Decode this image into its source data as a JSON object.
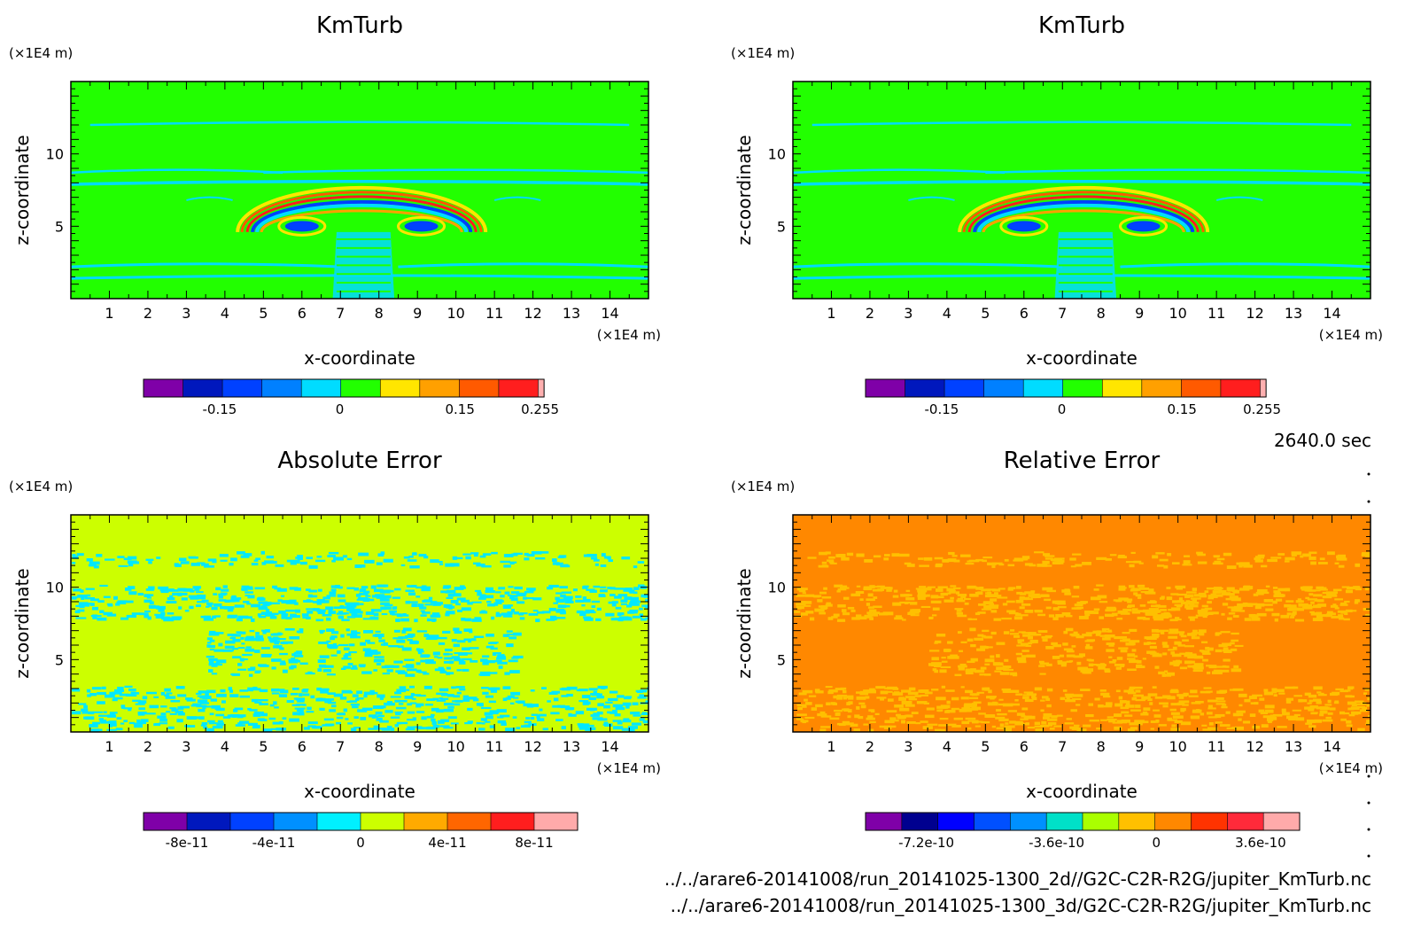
{
  "chart_data": [
    {
      "type": "heatmap",
      "panel": "top-left",
      "title": "KmTurb",
      "xlabel": "x-coordinate",
      "ylabel": "z-coordinate",
      "x_unit": "(×1E4 m)",
      "y_unit": "(×1E4 m)",
      "xlim": [
        0,
        15
      ],
      "ylim": [
        0,
        15
      ],
      "xticks": [
        "1",
        "2",
        "3",
        "4",
        "5",
        "6",
        "7",
        "8",
        "9",
        "10",
        "11",
        "12",
        "13",
        "14"
      ],
      "yticks": [
        "5",
        "10"
      ],
      "background_color": "#22ff00",
      "colorbar": {
        "levels": [
          "#7f00a8",
          "#0018bd",
          "#0041ff",
          "#0080ff",
          "#00dcff",
          "#22ff00",
          "#ffe600",
          "#ffa000",
          "#ff5a00",
          "#ff1e1e",
          "#ffb0b0"
        ],
        "tick_labels": [
          "-0.15",
          "0",
          "0.15",
          "0.255"
        ],
        "tick_values": [
          -0.15,
          0,
          0.15,
          0.255
        ]
      }
    },
    {
      "type": "heatmap",
      "panel": "top-right",
      "title": "KmTurb",
      "xlabel": "x-coordinate",
      "ylabel": "z-coordinate",
      "x_unit": "(×1E4 m)",
      "y_unit": "(×1E4 m)",
      "xlim": [
        0,
        15
      ],
      "ylim": [
        0,
        15
      ],
      "xticks": [
        "1",
        "2",
        "3",
        "4",
        "5",
        "6",
        "7",
        "8",
        "9",
        "10",
        "11",
        "12",
        "13",
        "14"
      ],
      "yticks": [
        "5",
        "10"
      ],
      "background_color": "#22ff00",
      "colorbar": {
        "levels": [
          "#7f00a8",
          "#0018bd",
          "#0041ff",
          "#0080ff",
          "#00dcff",
          "#22ff00",
          "#ffe600",
          "#ffa000",
          "#ff5a00",
          "#ff1e1e",
          "#ffb0b0"
        ],
        "tick_labels": [
          "-0.15",
          "0",
          "0.15",
          "0.255"
        ],
        "tick_values": [
          -0.15,
          0,
          0.15,
          0.255
        ]
      }
    },
    {
      "type": "heatmap",
      "panel": "bottom-left",
      "title": "Absolute Error",
      "xlabel": "x-coordinate",
      "ylabel": "z-coordinate",
      "x_unit": "(×1E4 m)",
      "y_unit": "(×1E4 m)",
      "xlim": [
        0,
        15
      ],
      "ylim": [
        0,
        15
      ],
      "xticks": [
        "1",
        "2",
        "3",
        "4",
        "5",
        "6",
        "7",
        "8",
        "9",
        "10",
        "11",
        "12",
        "13",
        "14"
      ],
      "yticks": [
        "5",
        "10"
      ],
      "background_color": "#ccff00",
      "speckle_color": "#00e8ff",
      "colorbar": {
        "levels": [
          "#7f00a8",
          "#0018bd",
          "#0041ff",
          "#0090ff",
          "#00f0ff",
          "#ccff00",
          "#ffaa00",
          "#ff6600",
          "#ff1e1e",
          "#ffaaaa"
        ],
        "tick_labels": [
          "-8e-11",
          "-4e-11",
          "0",
          "4e-11",
          "8e-11"
        ],
        "tick_values": [
          -8e-11,
          -4e-11,
          0,
          4e-11,
          8e-11
        ]
      }
    },
    {
      "type": "heatmap",
      "panel": "bottom-right",
      "title": "Relative Error",
      "xlabel": "x-coordinate",
      "ylabel": "z-coordinate",
      "x_unit": "(×1E4 m)",
      "y_unit": "(×1E4 m)",
      "xlim": [
        0,
        15
      ],
      "ylim": [
        0,
        15
      ],
      "xticks": [
        "1",
        "2",
        "3",
        "4",
        "5",
        "6",
        "7",
        "8",
        "9",
        "10",
        "11",
        "12",
        "13",
        "14"
      ],
      "yticks": [
        "5",
        "10"
      ],
      "background_color": "#ff8800",
      "speckle_color": "#ffc000",
      "colorbar": {
        "levels": [
          "#7f00a8",
          "#00008f",
          "#0000ff",
          "#0050ff",
          "#0090ff",
          "#00e0c8",
          "#aaff00",
          "#ffc000",
          "#ff8800",
          "#ff3300",
          "#ff2a3a",
          "#ffaaaa"
        ],
        "tick_labels": [
          "-7.2e-10",
          "-3.6e-10",
          "0",
          "3.6e-10"
        ],
        "tick_values": [
          -7.2e-10,
          -3.6e-10,
          0,
          3.6e-10
        ]
      }
    }
  ],
  "time_label": "2640.0 sec",
  "file_paths": [
    "../../arare6-20141008/run_20141025-1300_2d//G2C-C2R-R2G/jupiter_KmTurb.nc",
    "../../arare6-20141008/run_20141025-1300_3d/G2C-C2R-R2G/jupiter_KmTurb.nc"
  ]
}
